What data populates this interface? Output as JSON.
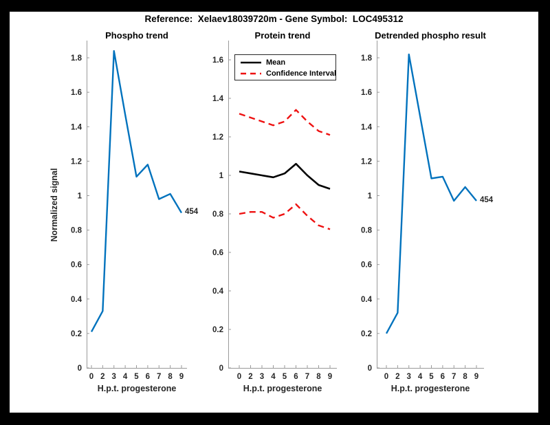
{
  "figure": {
    "title": "Reference:  Xelaev18039720m - Gene Symbol:  LOC495312",
    "background_color": "#000000",
    "canvas_color": "#ffffff",
    "axis_color": "#999999",
    "text_color": "#262626"
  },
  "chart_data": [
    {
      "type": "line",
      "title": "Phospho trend",
      "xlabel": "H.p.t. progesterone",
      "ylabel": "Normalized signal",
      "categories": [
        "0",
        "2",
        "3",
        "4",
        "5",
        "6",
        "7",
        "8",
        "9"
      ],
      "ylim": [
        0,
        1.9
      ],
      "grid": false,
      "yticks": {
        "values": [
          0,
          0.2,
          0.4,
          0.6,
          0.8,
          1,
          1.2,
          1.4,
          1.6,
          1.8
        ],
        "labels": [
          "0",
          "0.2",
          "0.4",
          "0.6",
          "0.8",
          "1",
          "1.2",
          "1.4",
          "1.6",
          "1.8"
        ]
      },
      "series": [
        {
          "name": "Phospho signal",
          "color": "#0072BD",
          "style": "solid",
          "width": 2.4,
          "values": [
            0.21,
            0.33,
            1.84,
            1.47,
            1.11,
            1.18,
            0.98,
            1.01,
            0.9
          ],
          "end_label": "454"
        }
      ]
    },
    {
      "type": "line",
      "title": "Protein trend",
      "xlabel": "H.p.t. progesterone",
      "ylabel": "",
      "categories": [
        "0",
        "2",
        "3",
        "4",
        "5",
        "6",
        "7",
        "8",
        "9"
      ],
      "ylim": [
        0,
        1.7
      ],
      "grid": false,
      "yticks": {
        "values": [
          0,
          0.2,
          0.4,
          0.6,
          0.8,
          1,
          1.2,
          1.4,
          1.6
        ],
        "labels": [
          "0",
          "0.2",
          "0.4",
          "0.6",
          "0.8",
          "1",
          "1.2",
          "1.4",
          "1.6"
        ]
      },
      "legend": {
        "position": "northwest",
        "entries": [
          {
            "label": "Mean",
            "color": "#000000",
            "style": "solid"
          },
          {
            "label": "Confidence Interval",
            "color": "#ee1111",
            "style": "dashed"
          }
        ]
      },
      "series": [
        {
          "name": "Mean",
          "color": "#000000",
          "style": "solid",
          "width": 2.6,
          "values": [
            1.02,
            1.01,
            1.0,
            0.99,
            1.01,
            1.06,
            1.0,
            0.95,
            0.93
          ]
        },
        {
          "name": "Confidence Interval upper",
          "color": "#ee1111",
          "style": "dashed",
          "width": 2.4,
          "values": [
            1.32,
            1.3,
            1.28,
            1.26,
            1.28,
            1.34,
            1.28,
            1.23,
            1.21
          ]
        },
        {
          "name": "Confidence Interval lower",
          "color": "#ee1111",
          "style": "dashed",
          "width": 2.4,
          "values": [
            0.8,
            0.81,
            0.81,
            0.78,
            0.8,
            0.85,
            0.79,
            0.74,
            0.72
          ]
        }
      ]
    },
    {
      "type": "line",
      "title": "Detrended phospho result",
      "xlabel": "H.p.t. progesterone",
      "ylabel": "",
      "categories": [
        "0",
        "2",
        "3",
        "4",
        "5",
        "6",
        "7",
        "8",
        "9"
      ],
      "ylim": [
        0,
        1.9
      ],
      "grid": false,
      "yticks": {
        "values": [
          0,
          0.2,
          0.4,
          0.6,
          0.8,
          1,
          1.2,
          1.4,
          1.6,
          1.8
        ],
        "labels": [
          "0",
          "0.2",
          "0.4",
          "0.6",
          "0.8",
          "1",
          "1.2",
          "1.4",
          "1.6",
          "1.8"
        ]
      },
      "series": [
        {
          "name": "Detrended phospho signal",
          "color": "#0072BD",
          "style": "solid",
          "width": 2.4,
          "values": [
            0.2,
            0.32,
            1.82,
            1.46,
            1.1,
            1.11,
            0.97,
            1.05,
            0.97
          ],
          "end_label": "454"
        }
      ]
    }
  ]
}
